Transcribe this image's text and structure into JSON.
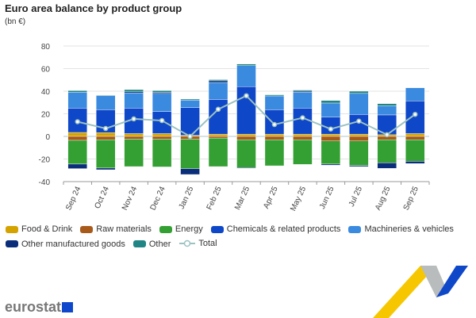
{
  "chart_data": {
    "type": "bar",
    "stacked": true,
    "title": "Euro area balance by product group",
    "ylabel": "(bn €)",
    "ylim": [
      -40,
      80
    ],
    "yticks": [
      -40,
      -20,
      0,
      20,
      40,
      60,
      80
    ],
    "grid": true,
    "legend_position": "bottom",
    "categories": [
      "Sep 24",
      "Oct 24",
      "Nov 24",
      "Dec 24",
      "Jan 25",
      "Feb 25",
      "Mar 25",
      "Apr 25",
      "May 25",
      "Jun 25",
      "Jul 25",
      "Aug 25",
      "Sep 25"
    ],
    "series": [
      {
        "name": "Food & Drink",
        "color": "#d4a300",
        "values": [
          3.5,
          3.3,
          2.5,
          2.5,
          1,
          2,
          2,
          2,
          2,
          2,
          2,
          1.5,
          2.5
        ]
      },
      {
        "name": "Raw materials",
        "color": "#a85a1a",
        "values": [
          -3.5,
          -3,
          -2.5,
          -2.5,
          -2.5,
          -1.5,
          -3,
          -3,
          -3,
          -4,
          -4,
          -3,
          -3
        ]
      },
      {
        "name": "Energy",
        "color": "#34a033",
        "values": [
          -21,
          -25,
          -24.2,
          -24.5,
          -26,
          -25.2,
          -24.6,
          -23,
          -21.8,
          -20.5,
          -21.7,
          -20.4,
          -19
        ]
      },
      {
        "name": "Chemicals & related products",
        "color": "#0f47c9",
        "values": [
          21.5,
          20.3,
          22.5,
          19.5,
          24.5,
          30.7,
          42,
          21.6,
          23,
          15,
          17.4,
          17.5,
          28.9
        ]
      },
      {
        "name": "Machineries & vehicles",
        "color": "#3a8ae0",
        "values": [
          14,
          12.4,
          13.4,
          16,
          6.5,
          15,
          18.7,
          12.2,
          14,
          12.5,
          18.6,
          8,
          11.6
        ]
      },
      {
        "name": "Other manufactured goods",
        "color": "#0b2e7a",
        "values": [
          -4,
          -1.5,
          1,
          1,
          -5.2,
          1.5,
          -0.6,
          0,
          1,
          -1,
          -1,
          -4.9,
          -2
        ]
      },
      {
        "name": "Other",
        "color": "#218585",
        "values": [
          1.5,
          0.5,
          2,
          1.5,
          1,
          1,
          1.3,
          1,
          1,
          2.3,
          2,
          2,
          0
        ]
      }
    ],
    "total": {
      "name": "Total",
      "color": "#9cc2c2",
      "values": [
        13,
        7,
        15.5,
        14,
        0,
        24,
        36,
        10.5,
        16.5,
        6.5,
        13.5,
        1.5,
        19.5
      ]
    }
  },
  "brand": "eurostat"
}
